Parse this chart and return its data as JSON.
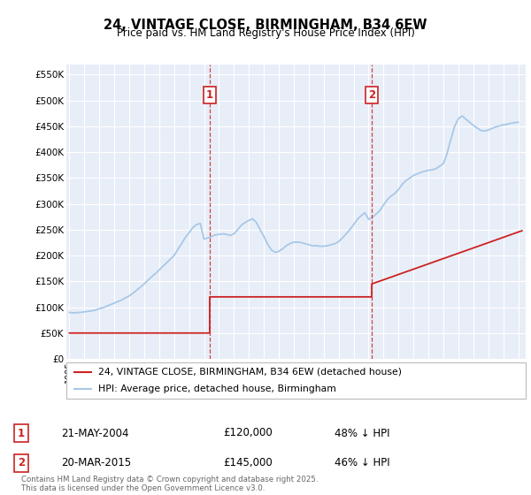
{
  "title": "24, VINTAGE CLOSE, BIRMINGHAM, B34 6EW",
  "subtitle": "Price paid vs. HM Land Registry's House Price Index (HPI)",
  "ylim": [
    0,
    570000
  ],
  "yticks": [
    0,
    50000,
    100000,
    150000,
    200000,
    250000,
    300000,
    350000,
    400000,
    450000,
    500000,
    550000
  ],
  "ytick_labels": [
    "£0",
    "£50K",
    "£100K",
    "£150K",
    "£200K",
    "£250K",
    "£300K",
    "£350K",
    "£400K",
    "£450K",
    "£500K",
    "£550K"
  ],
  "xlim_start": 1994.8,
  "xlim_end": 2025.5,
  "xtick_years": [
    1995,
    1996,
    1997,
    1998,
    1999,
    2000,
    2001,
    2002,
    2003,
    2004,
    2005,
    2006,
    2007,
    2008,
    2009,
    2010,
    2011,
    2012,
    2013,
    2014,
    2015,
    2016,
    2017,
    2018,
    2019,
    2020,
    2021,
    2022,
    2023,
    2024,
    2025
  ],
  "hpi_color": "#a8c8e8",
  "sale_color": "#cc2222",
  "vline_color": "#cc2222",
  "plot_bg_color": "#e8eef8",
  "legend_label_red": "24, VINTAGE CLOSE, BIRMINGHAM, B34 6EW (detached house)",
  "legend_label_blue": "HPI: Average price, detached house, Birmingham",
  "sale1_date": "21-MAY-2004",
  "sale1_price": "£120,000",
  "sale1_pct": "48% ↓ HPI",
  "sale1_year": 2004.38,
  "sale1_value": 120000,
  "sale2_date": "20-MAR-2015",
  "sale2_price": "£145,000",
  "sale2_pct": "46% ↓ HPI",
  "sale2_year": 2015.21,
  "sale2_value": 145000,
  "footer": "Contains HM Land Registry data © Crown copyright and database right 2025.\nThis data is licensed under the Open Government Licence v3.0.",
  "hpi_years": [
    1995.0,
    1995.25,
    1995.5,
    1995.75,
    1996.0,
    1996.25,
    1996.5,
    1996.75,
    1997.0,
    1997.25,
    1997.5,
    1997.75,
    1998.0,
    1998.25,
    1998.5,
    1998.75,
    1999.0,
    1999.25,
    1999.5,
    1999.75,
    2000.0,
    2000.25,
    2000.5,
    2000.75,
    2001.0,
    2001.25,
    2001.5,
    2001.75,
    2002.0,
    2002.25,
    2002.5,
    2002.75,
    2003.0,
    2003.25,
    2003.5,
    2003.75,
    2004.0,
    2004.25,
    2004.5,
    2004.75,
    2005.0,
    2005.25,
    2005.5,
    2005.75,
    2006.0,
    2006.25,
    2006.5,
    2006.75,
    2007.0,
    2007.25,
    2007.5,
    2007.75,
    2008.0,
    2008.25,
    2008.5,
    2008.75,
    2009.0,
    2009.25,
    2009.5,
    2009.75,
    2010.0,
    2010.25,
    2010.5,
    2010.75,
    2011.0,
    2011.25,
    2011.5,
    2011.75,
    2012.0,
    2012.25,
    2012.5,
    2012.75,
    2013.0,
    2013.25,
    2013.5,
    2013.75,
    2014.0,
    2014.25,
    2014.5,
    2014.75,
    2015.0,
    2015.25,
    2015.5,
    2015.75,
    2016.0,
    2016.25,
    2016.5,
    2016.75,
    2017.0,
    2017.25,
    2017.5,
    2017.75,
    2018.0,
    2018.25,
    2018.5,
    2018.75,
    2019.0,
    2019.25,
    2019.5,
    2019.75,
    2020.0,
    2020.25,
    2020.5,
    2020.75,
    2021.0,
    2021.25,
    2021.5,
    2021.75,
    2022.0,
    2022.25,
    2022.5,
    2022.75,
    2023.0,
    2023.25,
    2023.5,
    2023.75,
    2024.0,
    2024.25,
    2024.5,
    2024.75,
    2025.0
  ],
  "hpi_values": [
    90000,
    89000,
    89500,
    90000,
    91000,
    92000,
    93000,
    94500,
    97000,
    99000,
    102000,
    105000,
    108000,
    111000,
    114000,
    118000,
    122000,
    127000,
    133000,
    139000,
    145000,
    152000,
    159000,
    165000,
    172000,
    179000,
    186000,
    193000,
    200000,
    212000,
    223000,
    235000,
    244000,
    254000,
    260000,
    262000,
    232000,
    234000,
    237000,
    240000,
    241000,
    242000,
    241000,
    239000,
    242000,
    250000,
    259000,
    264000,
    268000,
    271000,
    264000,
    250000,
    237000,
    222000,
    211000,
    206000,
    208000,
    213000,
    219000,
    223000,
    226000,
    226000,
    225000,
    223000,
    221000,
    219000,
    219000,
    218000,
    218000,
    219000,
    221000,
    223000,
    227000,
    234000,
    242000,
    250000,
    260000,
    270000,
    277000,
    283000,
    270000,
    274000,
    280000,
    287000,
    298000,
    308000,
    315000,
    320000,
    328000,
    338000,
    345000,
    350000,
    355000,
    358000,
    361000,
    363000,
    365000,
    366000,
    368000,
    373000,
    378000,
    398000,
    425000,
    450000,
    465000,
    470000,
    464000,
    458000,
    452000,
    447000,
    442000,
    441000,
    443000,
    446000,
    449000,
    451000,
    453000,
    454000,
    456000,
    457000,
    458000
  ],
  "sale_years_line": [
    1995.0,
    2004.38,
    2004.38,
    2015.21,
    2015.21,
    2025.25
  ],
  "sale_values_line": [
    50000,
    50000,
    120000,
    120000,
    145000,
    248000
  ]
}
